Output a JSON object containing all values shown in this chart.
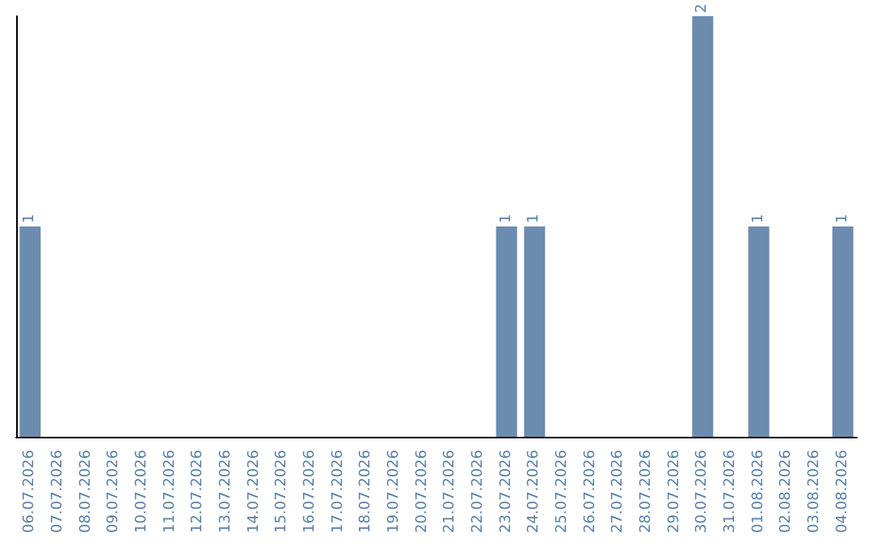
{
  "chart_data": {
    "type": "bar",
    "categories": [
      "06.07.2026",
      "07.07.2026",
      "08.07.2026",
      "09.07.2026",
      "10.07.2026",
      "11.07.2026",
      "12.07.2026",
      "13.07.2026",
      "14.07.2026",
      "15.07.2026",
      "16.07.2026",
      "17.07.2026",
      "18.07.2026",
      "19.07.2026",
      "20.07.2026",
      "21.07.2026",
      "22.07.2026",
      "23.07.2026",
      "24.07.2026",
      "25.07.2026",
      "26.07.2026",
      "27.07.2026",
      "28.07.2026",
      "29.07.2026",
      "30.07.2026",
      "31.07.2026",
      "01.08.2026",
      "02.08.2026",
      "03.08.2026",
      "04.08.2026"
    ],
    "values": [
      1,
      0,
      0,
      0,
      0,
      0,
      0,
      0,
      0,
      0,
      0,
      0,
      0,
      0,
      0,
      0,
      0,
      1,
      1,
      0,
      0,
      0,
      0,
      0,
      2,
      0,
      1,
      0,
      0,
      1
    ],
    "value_labels": [
      "1",
      null,
      null,
      null,
      null,
      null,
      null,
      null,
      null,
      null,
      null,
      null,
      null,
      null,
      null,
      null,
      null,
      "1",
      "1",
      null,
      null,
      null,
      null,
      null,
      "2",
      null,
      "1",
      null,
      null,
      "1"
    ],
    "color": "#6b8cae",
    "tick_labels": "x"
  }
}
